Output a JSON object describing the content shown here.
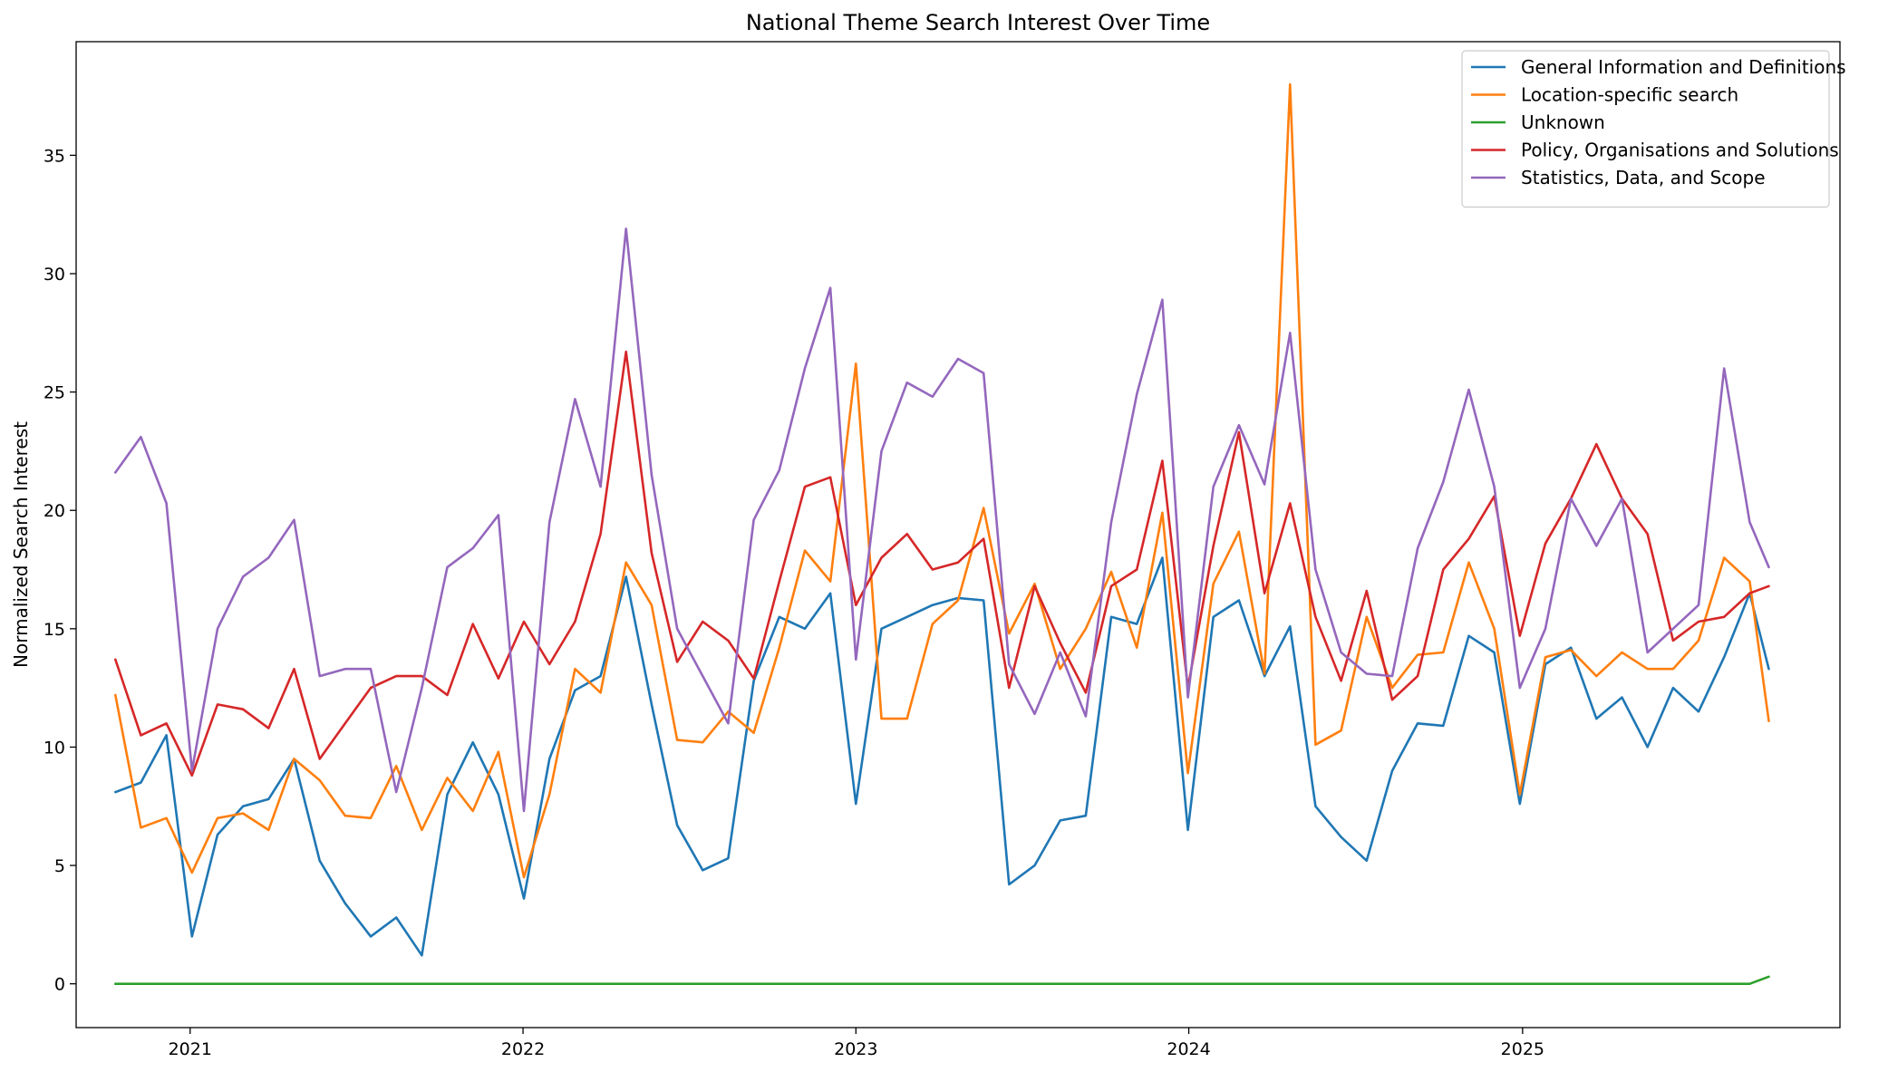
{
  "chart_data": {
    "type": "line",
    "title": "National Theme Search Interest Over Time",
    "xlabel": "",
    "ylabel": "Normalized Search Interest",
    "x_axis": {
      "type": "date",
      "range": [
        "2020-08-29",
        "2025-12-15"
      ],
      "tick_labels": [
        "2021",
        "2022",
        "2023",
        "2024",
        "2025"
      ],
      "tick_dates": [
        "2021-01-01",
        "2022-01-01",
        "2023-01-01",
        "2024-01-01",
        "2025-01-01"
      ]
    },
    "y_axis": {
      "range": [
        -1.85,
        39.8
      ],
      "ticks": [
        0,
        5,
        10,
        15,
        20,
        25,
        30,
        35
      ]
    },
    "grid": false,
    "legend_position": "top-right",
    "dates": [
      "2020-10-11",
      "2020-11-08",
      "2020-12-06",
      "2021-01-03",
      "2021-01-31",
      "2021-02-28",
      "2021-03-28",
      "2021-04-25",
      "2021-05-23",
      "2021-06-20",
      "2021-07-18",
      "2021-08-15",
      "2021-09-12",
      "2021-10-10",
      "2021-11-07",
      "2021-12-05",
      "2022-01-02",
      "2022-01-30",
      "2022-02-27",
      "2022-03-27",
      "2022-04-24",
      "2022-05-22",
      "2022-06-19",
      "2022-07-17",
      "2022-08-14",
      "2022-09-11",
      "2022-10-09",
      "2022-11-06",
      "2022-12-04",
      "2023-01-01",
      "2023-01-29",
      "2023-02-26",
      "2023-03-26",
      "2023-04-23",
      "2023-05-21",
      "2023-06-18",
      "2023-07-16",
      "2023-08-13",
      "2023-09-10",
      "2023-10-08",
      "2023-11-05",
      "2023-12-03",
      "2023-12-31",
      "2024-01-28",
      "2024-02-25",
      "2024-03-24",
      "2024-04-21",
      "2024-05-19",
      "2024-06-16",
      "2024-07-14",
      "2024-08-11",
      "2024-09-08",
      "2024-10-06",
      "2024-11-03",
      "2024-12-01",
      "2024-12-29",
      "2025-01-26",
      "2025-02-23",
      "2025-03-23",
      "2025-04-20",
      "2025-05-18",
      "2025-06-15",
      "2025-07-13",
      "2025-08-10",
      "2025-09-07",
      "2025-09-28"
    ],
    "series": [
      {
        "name": "General Information and Definitions",
        "color": "#1f77b4",
        "values": [
          8.1,
          8.5,
          10.5,
          2.0,
          6.3,
          7.5,
          7.8,
          9.5,
          5.2,
          3.4,
          2.0,
          2.8,
          1.2,
          8.0,
          10.2,
          8.0,
          3.6,
          9.5,
          12.4,
          13.0,
          17.2,
          11.8,
          6.7,
          4.8,
          5.3,
          12.8,
          15.5,
          15.0,
          16.5,
          7.6,
          15.0,
          15.5,
          16.0,
          16.3,
          16.2,
          4.2,
          5.0,
          6.9,
          7.1,
          15.5,
          15.2,
          18.0,
          6.5,
          15.5,
          16.2,
          13.0,
          15.1,
          7.5,
          6.2,
          5.2,
          9.0,
          11.0,
          10.9,
          14.7,
          14.0,
          7.6,
          13.5,
          14.2,
          11.2,
          12.1,
          10.0,
          12.5,
          11.5,
          13.8,
          16.5,
          13.3
        ]
      },
      {
        "name": "Location-specific search",
        "color": "#ff7f0e",
        "values": [
          12.2,
          6.6,
          7.0,
          4.7,
          7.0,
          7.2,
          6.5,
          9.5,
          8.6,
          7.1,
          7.0,
          9.2,
          6.5,
          8.7,
          7.3,
          9.8,
          4.5,
          8.0,
          13.3,
          12.3,
          17.8,
          16.0,
          10.3,
          10.2,
          11.5,
          10.6,
          14.2,
          18.3,
          17.0,
          26.2,
          11.2,
          11.2,
          15.2,
          16.2,
          20.1,
          14.8,
          16.9,
          13.3,
          15.0,
          17.4,
          14.2,
          19.9,
          8.9,
          16.9,
          19.1,
          13.1,
          38.0,
          10.1,
          10.7,
          15.5,
          12.5,
          13.9,
          14.0,
          17.8,
          15.0,
          8.0,
          13.8,
          14.1,
          13.0,
          14.0,
          13.3,
          13.3,
          14.5,
          18.0,
          17.0,
          11.1
        ]
      },
      {
        "name": "Unknown",
        "color": "#2ca02c",
        "values": [
          0.0,
          0.0,
          0.0,
          0.0,
          0.0,
          0.0,
          0.0,
          0.0,
          0.0,
          0.0,
          0.0,
          0.0,
          0.0,
          0.0,
          0.0,
          0.0,
          0.0,
          0.0,
          0.0,
          0.0,
          0.0,
          0.0,
          0.0,
          0.0,
          0.0,
          0.0,
          0.0,
          0.0,
          0.0,
          0.0,
          0.0,
          0.0,
          0.0,
          0.0,
          0.0,
          0.0,
          0.0,
          0.0,
          0.0,
          0.0,
          0.0,
          0.0,
          0.0,
          0.0,
          0.0,
          0.0,
          0.0,
          0.0,
          0.0,
          0.0,
          0.0,
          0.0,
          0.0,
          0.0,
          0.0,
          0.0,
          0.0,
          0.0,
          0.0,
          0.0,
          0.0,
          0.0,
          0.0,
          0.0,
          0.0,
          0.3
        ]
      },
      {
        "name": "Policy, Organisations and Solutions",
        "color": "#d62728",
        "values": [
          13.7,
          10.5,
          11.0,
          8.8,
          11.8,
          11.6,
          10.8,
          13.3,
          9.5,
          11.0,
          12.5,
          13.0,
          13.0,
          12.2,
          15.2,
          12.9,
          15.3,
          13.5,
          15.3,
          19.0,
          26.7,
          18.2,
          13.6,
          15.3,
          14.5,
          12.9,
          17.0,
          21.0,
          21.4,
          16.0,
          18.0,
          19.0,
          17.5,
          17.8,
          18.8,
          12.5,
          16.8,
          14.4,
          12.3,
          16.8,
          17.5,
          22.1,
          12.5,
          18.5,
          23.3,
          16.5,
          20.3,
          15.5,
          12.8,
          16.6,
          12.0,
          13.0,
          17.5,
          18.8,
          20.6,
          14.7,
          18.6,
          20.5,
          22.8,
          20.5,
          19.0,
          14.5,
          15.3,
          15.5,
          16.5,
          16.8
        ]
      },
      {
        "name": "Statistics, Data, and Scope",
        "color": "#9467bd",
        "values": [
          21.6,
          23.1,
          20.3,
          9.0,
          15.0,
          17.2,
          18.0,
          19.6,
          13.0,
          13.3,
          13.3,
          8.1,
          12.5,
          17.6,
          18.4,
          19.8,
          7.3,
          19.5,
          24.7,
          21.0,
          31.9,
          21.5,
          15.0,
          13.0,
          11.0,
          19.6,
          21.7,
          26.0,
          29.4,
          13.7,
          22.5,
          25.4,
          24.8,
          26.4,
          25.8,
          13.5,
          11.4,
          14.0,
          11.3,
          19.5,
          24.9,
          28.9,
          12.1,
          21.0,
          23.6,
          21.1,
          27.5,
          17.5,
          14.0,
          13.1,
          13.0,
          18.4,
          21.2,
          25.1,
          21.0,
          12.5,
          15.0,
          20.5,
          18.5,
          20.5,
          14.0,
          15.0,
          16.0,
          26.0,
          19.5,
          17.6
        ]
      }
    ]
  }
}
